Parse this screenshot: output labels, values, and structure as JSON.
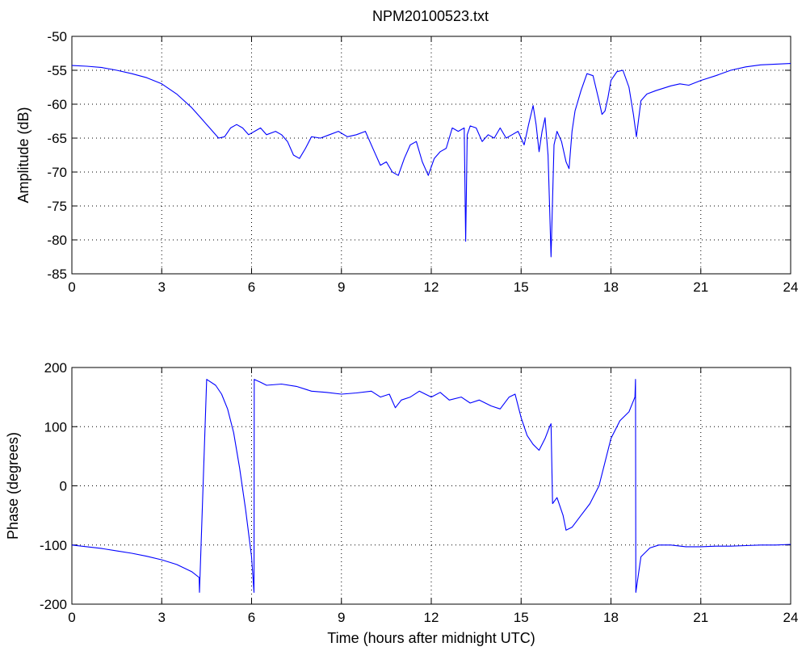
{
  "figure": {
    "title": "NPM20100523.txt",
    "line_color": "#0000ff"
  },
  "chart_data": [
    {
      "type": "line",
      "title": "NPM20100523.txt",
      "xlabel": "",
      "ylabel": "Amplitude (dB)",
      "xlim": [
        0,
        24
      ],
      "ylim": [
        -85,
        -50
      ],
      "xticks": [
        "0",
        "3",
        "6",
        "9",
        "12",
        "15",
        "18",
        "21",
        "24"
      ],
      "yticks": [
        "-85",
        "-80",
        "-75",
        "-70",
        "-65",
        "-60",
        "-55",
        "-50"
      ],
      "grid": true,
      "series": [
        {
          "color": "#0000ff",
          "x": [
            0,
            0.5,
            1,
            1.5,
            2,
            2.5,
            3,
            3.5,
            4,
            4.3,
            4.6,
            4.9,
            5.1,
            5.3,
            5.5,
            5.7,
            5.9,
            6.1,
            6.3,
            6.5,
            6.8,
            7.0,
            7.2,
            7.4,
            7.6,
            7.8,
            8.0,
            8.3,
            8.6,
            8.9,
            9.2,
            9.5,
            9.8,
            10.1,
            10.3,
            10.5,
            10.7,
            10.9,
            11.1,
            11.3,
            11.5,
            11.7,
            11.9,
            12.1,
            12.3,
            12.5,
            12.7,
            12.9,
            13.1,
            13.15,
            13.2,
            13.3,
            13.5,
            13.7,
            13.9,
            14.1,
            14.3,
            14.5,
            14.7,
            14.9,
            15.1,
            15.25,
            15.4,
            15.5,
            15.6,
            15.7,
            15.8,
            15.9,
            15.95,
            16.0,
            16.05,
            16.1,
            16.2,
            16.35,
            16.5,
            16.6,
            16.7,
            16.8,
            17.0,
            17.2,
            17.4,
            17.6,
            17.7,
            17.8,
            17.9,
            18.0,
            18.2,
            18.4,
            18.6,
            18.75,
            18.85,
            19.0,
            19.2,
            19.5,
            20.0,
            20.3,
            20.6,
            21.0,
            21.5,
            22.0,
            22.5,
            23.0,
            23.5,
            24.0
          ],
          "values": [
            -54.3,
            -54.4,
            -54.6,
            -55.0,
            -55.5,
            -56.1,
            -57.0,
            -58.5,
            -60.5,
            -62.0,
            -63.5,
            -65.0,
            -64.8,
            -63.5,
            -63.0,
            -63.5,
            -64.5,
            -64.0,
            -63.5,
            -64.5,
            -64.0,
            -64.5,
            -65.5,
            -67.5,
            -68.0,
            -66.5,
            -64.8,
            -65.0,
            -64.5,
            -64.0,
            -64.8,
            -64.5,
            -64.0,
            -67.0,
            -69.0,
            -68.5,
            -70.0,
            -70.5,
            -68.0,
            -66.0,
            -65.5,
            -68.5,
            -70.5,
            -68.0,
            -67.0,
            -66.5,
            -63.5,
            -64.0,
            -63.5,
            -80.2,
            -64.5,
            -63.2,
            -63.5,
            -65.5,
            -64.5,
            -65.0,
            -63.5,
            -65.0,
            -64.5,
            -64.0,
            -66.0,
            -63.0,
            -60.2,
            -63.0,
            -67.0,
            -64.0,
            -62.0,
            -67.5,
            -75.0,
            -82.5,
            -74.0,
            -66.0,
            -64.0,
            -65.5,
            -68.5,
            -69.5,
            -64.0,
            -61.0,
            -58.0,
            -55.5,
            -55.8,
            -59.5,
            -61.5,
            -61.0,
            -59.0,
            -56.5,
            -55.2,
            -55.0,
            -57.5,
            -61.5,
            -64.8,
            -59.5,
            -58.5,
            -58.0,
            -57.3,
            -57.0,
            -57.2,
            -56.5,
            -55.8,
            -55.0,
            -54.5,
            -54.2,
            -54.1,
            -54.0
          ]
        }
      ]
    },
    {
      "type": "line",
      "title": "",
      "xlabel": "Time (hours after midnight UTC)",
      "ylabel": "Phase (degrees)",
      "xlim": [
        0,
        24
      ],
      "ylim": [
        -200,
        200
      ],
      "xticks": [
        "0",
        "3",
        "6",
        "9",
        "12",
        "15",
        "18",
        "21",
        "24"
      ],
      "yticks": [
        "-200",
        "-100",
        "0",
        "100",
        "200"
      ],
      "grid": true,
      "series": [
        {
          "color": "#0000ff",
          "x": [
            0,
            0.5,
            1,
            1.5,
            2,
            2.5,
            3,
            3.5,
            4,
            4.25,
            4.26,
            4.5,
            4.8,
            5.0,
            5.2,
            5.4,
            5.6,
            5.8,
            6.0,
            6.08,
            6.09,
            6.3,
            6.5,
            7.0,
            7.5,
            8.0,
            8.5,
            9.0,
            9.5,
            10.0,
            10.3,
            10.6,
            10.8,
            11.0,
            11.3,
            11.6,
            12.0,
            12.3,
            12.6,
            13.0,
            13.3,
            13.6,
            14.0,
            14.3,
            14.6,
            14.8,
            15.0,
            15.2,
            15.4,
            15.6,
            15.8,
            15.95,
            16.0,
            16.05,
            16.2,
            16.4,
            16.5,
            16.7,
            17.0,
            17.3,
            17.6,
            17.8,
            18.0,
            18.3,
            18.6,
            18.8,
            18.82,
            18.83,
            19.0,
            19.3,
            19.6,
            20.0,
            20.5,
            21.0,
            21.5,
            22.0,
            22.5,
            23.0,
            23.5,
            24.0
          ],
          "values": [
            -100,
            -103,
            -106,
            -110,
            -114,
            -119,
            -125,
            -133,
            -145,
            -155,
            -180,
            180,
            170,
            155,
            130,
            90,
            30,
            -40,
            -120,
            -180,
            180,
            175,
            170,
            172,
            168,
            160,
            158,
            155,
            157,
            160,
            150,
            155,
            132,
            145,
            150,
            160,
            150,
            158,
            145,
            150,
            140,
            145,
            135,
            130,
            150,
            155,
            115,
            85,
            70,
            60,
            80,
            100,
            105,
            -30,
            -20,
            -50,
            -75,
            -70,
            -50,
            -30,
            0,
            40,
            80,
            110,
            125,
            150,
            180,
            -180,
            -120,
            -105,
            -100,
            -100,
            -103,
            -103,
            -102,
            -102,
            -101,
            -100,
            -100,
            -99
          ]
        }
      ]
    }
  ]
}
